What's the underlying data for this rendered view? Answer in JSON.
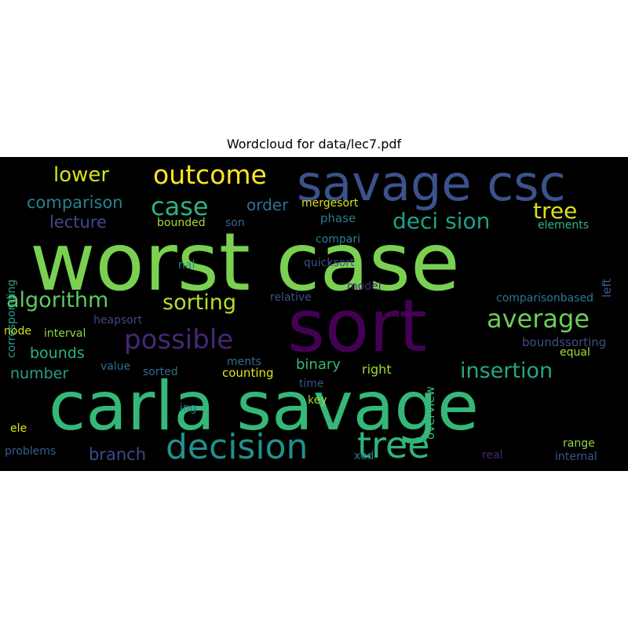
{
  "chart_data": {
    "type": "wordcloud",
    "title": "Wordcloud for data/lec7.pdf",
    "words": [
      {
        "text": "worst case",
        "color": "#7ad151"
      },
      {
        "text": "carla savage",
        "color": "#35b779"
      },
      {
        "text": "savage csc",
        "color": "#3b528b"
      },
      {
        "text": "sort",
        "color": "#440154"
      },
      {
        "text": "decision",
        "color": "#21918c"
      },
      {
        "text": "tree",
        "color": "#2fb47c"
      },
      {
        "text": "outcome",
        "color": "#fde725"
      },
      {
        "text": "possible",
        "color": "#482677"
      },
      {
        "text": "algorithm",
        "color": "#5ec962"
      },
      {
        "text": "sorting",
        "color": "#b5de2b"
      },
      {
        "text": "average",
        "color": "#6ccd5a"
      },
      {
        "text": "deci sion",
        "color": "#1fa187"
      },
      {
        "text": "case",
        "color": "#2db27d"
      },
      {
        "text": "tree",
        "color": "#d8e219"
      },
      {
        "text": "insertion",
        "color": "#22a884"
      },
      {
        "text": "lower",
        "color": "#d2e21b"
      },
      {
        "text": "comparison",
        "color": "#26828e"
      },
      {
        "text": "order",
        "color": "#2c728e"
      },
      {
        "text": "lecture",
        "color": "#3e4989"
      },
      {
        "text": "mergesort",
        "color": "#d5e21a"
      },
      {
        "text": "phase",
        "color": "#2a788e"
      },
      {
        "text": "bounded",
        "color": "#a0da39"
      },
      {
        "text": "son",
        "color": "#31688e"
      },
      {
        "text": "elements",
        "color": "#35b779"
      },
      {
        "text": "compari",
        "color": "#26828e"
      },
      {
        "text": "quicksort",
        "color": "#3b528b"
      },
      {
        "text": "nal",
        "color": "#21918c"
      },
      {
        "text": "left",
        "color": "#38598c"
      },
      {
        "text": "corresponding",
        "color": "#2a9d8f"
      },
      {
        "text": "bounds",
        "color": "#2db27d"
      },
      {
        "text": "number",
        "color": "#2c9c87"
      },
      {
        "text": "binary",
        "color": "#35b779"
      },
      {
        "text": "right",
        "color": "#9bd93c"
      },
      {
        "text": "branch",
        "color": "#3a4a8c"
      },
      {
        "text": "relative",
        "color": "#3b528b"
      },
      {
        "text": "model",
        "color": "#482475"
      },
      {
        "text": "comparisonbased",
        "color": "#2a788e"
      },
      {
        "text": "node",
        "color": "#d0e11c"
      },
      {
        "text": "interval",
        "color": "#8fd744"
      },
      {
        "text": "heapsort",
        "color": "#3f4788"
      },
      {
        "text": "overview",
        "color": "#3ab87a"
      },
      {
        "text": "boundssorting",
        "color": "#3d4e8a"
      },
      {
        "text": "equal",
        "color": "#a5db36"
      },
      {
        "text": "value",
        "color": "#2e6d8e"
      },
      {
        "text": "sorted",
        "color": "#2e6e8e"
      },
      {
        "text": "ments",
        "color": "#2e6e8e"
      },
      {
        "text": "counting",
        "color": "#e5e419"
      },
      {
        "text": "time",
        "color": "#3b528b"
      },
      {
        "text": "ing",
        "color": "#2a788e"
      },
      {
        "text": "key",
        "color": "#a2da37"
      },
      {
        "text": "ele",
        "color": "#e2e418"
      },
      {
        "text": "problems",
        "color": "#355f8d"
      },
      {
        "text": "xed",
        "color": "#2a788e"
      },
      {
        "text": "range",
        "color": "#8fd744"
      },
      {
        "text": "real",
        "color": "#482677"
      },
      {
        "text": "internal",
        "color": "#38598c"
      }
    ]
  }
}
